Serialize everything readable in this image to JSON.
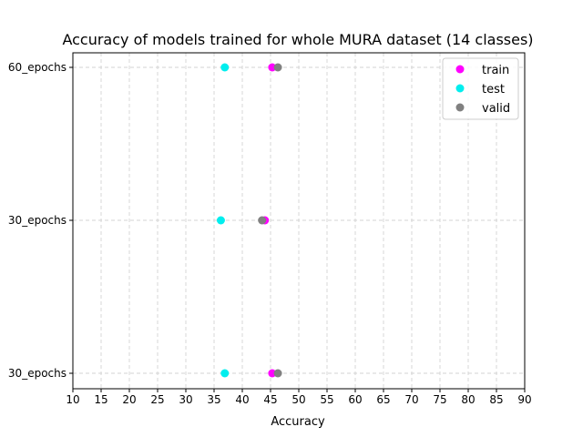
{
  "chart_data": {
    "type": "scatter",
    "title": "Accuracy of models trained for whole MURA dataset (14 classes)",
    "xlabel": "Accuracy",
    "ylabel": "",
    "xlim": [
      10,
      90
    ],
    "xticks": [
      10,
      15,
      20,
      25,
      30,
      35,
      40,
      45,
      50,
      55,
      60,
      65,
      70,
      75,
      80,
      85,
      90
    ],
    "categories": [
      "30_epochs",
      "30_epochs",
      "60_epochs"
    ],
    "category_labels_visible": [
      "30_epochs",
      "30_epochs",
      "60_epochs"
    ],
    "grid": true,
    "legend_placement": "top-right",
    "series": [
      {
        "name": "train",
        "color": "#ff00ff",
        "values": [
          45.3,
          44.0,
          45.3
        ]
      },
      {
        "name": "test",
        "color": "#00eeee",
        "values": [
          36.9,
          36.2,
          36.9
        ]
      },
      {
        "name": "valid",
        "color": "#808080",
        "values": [
          46.3,
          43.5,
          46.3
        ]
      }
    ]
  }
}
